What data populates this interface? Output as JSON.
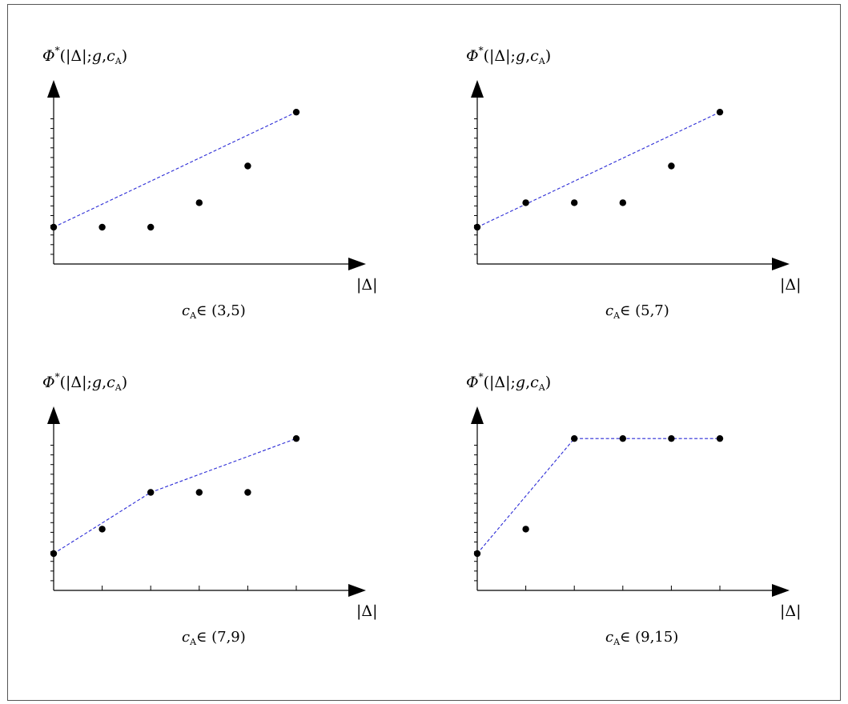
{
  "colors": {
    "hull_line": "#2b2bd6",
    "points": "#000000",
    "frame": "#555555"
  },
  "y_axis_label": {
    "phi": "Φ",
    "star": "*",
    "args_open": "(|Δ|;",
    "g": "g",
    "comma": ",",
    "c": "c",
    "sub": "A",
    "close": ")"
  },
  "x_axis_label": "|Δ|",
  "chart_data": [
    {
      "type": "scatter",
      "xlabel": "|Δ|",
      "ylabel": "Φ*(|Δ|;g,cA)",
      "caption": {
        "c": "c",
        "sub": "A",
        "rel": "∈",
        "interval": "(3,5)"
      },
      "x": [
        0,
        1,
        2,
        3,
        4,
        5
      ],
      "y": [
        0,
        0,
        0,
        1,
        2.5,
        4.7
      ],
      "hull": {
        "x": [
          0,
          5
        ],
        "y": [
          0,
          4.7
        ]
      },
      "xlim": [
        0,
        6
      ],
      "ylim": [
        -1.4,
        6.5
      ],
      "y_ticks": 15,
      "x_ticks": false,
      "grid": false
    },
    {
      "type": "scatter",
      "xlabel": "|Δ|",
      "ylabel": "Φ*(|Δ|;g,cA)",
      "caption": {
        "c": "c",
        "sub": "A",
        "rel": "∈",
        "interval": "(5,7)"
      },
      "x": [
        0,
        1,
        2,
        3,
        4,
        5
      ],
      "y": [
        0,
        1,
        1,
        1,
        2.5,
        4.7
      ],
      "hull": {
        "x": [
          0,
          5
        ],
        "y": [
          0,
          4.7
        ]
      },
      "xlim": [
        0,
        6
      ],
      "ylim": [
        -1.4,
        6.5
      ],
      "y_ticks": 15,
      "x_ticks": false,
      "grid": false
    },
    {
      "type": "scatter",
      "xlabel": "|Δ|",
      "ylabel": "Φ*(|Δ|;g,cA)",
      "caption": {
        "c": "c",
        "sub": "A",
        "rel": "∈",
        "interval": "(7,9)"
      },
      "x": [
        0,
        1,
        2,
        3,
        4,
        5
      ],
      "y": [
        0,
        1,
        2.5,
        2.5,
        2.5,
        4.7
      ],
      "hull": {
        "x": [
          0,
          2,
          5
        ],
        "y": [
          0,
          2.5,
          4.7
        ]
      },
      "xlim": [
        0,
        6
      ],
      "ylim": [
        -1.4,
        6.5
      ],
      "y_ticks": 15,
      "x_ticks": true,
      "grid": false
    },
    {
      "type": "scatter",
      "xlabel": "|Δ|",
      "ylabel": "Φ*(|Δ|;g,cA)",
      "caption": {
        "c": "c",
        "sub": "A",
        "rel": "∈",
        "interval": "(9,15)"
      },
      "x": [
        0,
        1,
        2,
        3,
        4,
        5
      ],
      "y": [
        0,
        1,
        4.7,
        4.7,
        4.7,
        4.7
      ],
      "hull": {
        "x": [
          0,
          2,
          3,
          4,
          5
        ],
        "y": [
          0,
          4.7,
          4.7,
          4.7,
          4.7
        ]
      },
      "xlim": [
        0,
        6
      ],
      "ylim": [
        -1.4,
        6.5
      ],
      "y_ticks": 15,
      "x_ticks": true,
      "grid": false
    }
  ]
}
